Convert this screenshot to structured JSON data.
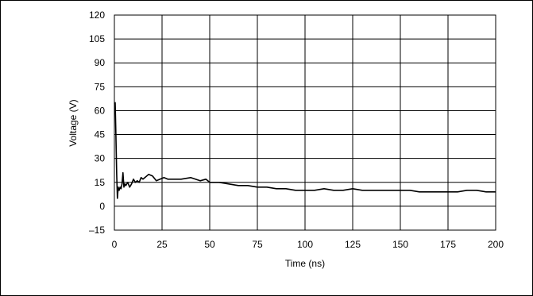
{
  "chart_data": {
    "type": "line",
    "title": "",
    "xlabel": "Time (ns)",
    "ylabel": "Voltage (V)",
    "xlim": [
      0,
      200
    ],
    "ylim": [
      -15,
      120
    ],
    "x_ticks": [
      0,
      25,
      50,
      75,
      100,
      125,
      150,
      175,
      200
    ],
    "y_ticks": [
      -15,
      0,
      15,
      30,
      45,
      60,
      75,
      90,
      105,
      120
    ],
    "x_tick_labels": [
      "0",
      "25",
      "50",
      "75",
      "100",
      "125",
      "150",
      "175",
      "200"
    ],
    "y_tick_labels": [
      "–15",
      "0",
      "15",
      "30",
      "45",
      "60",
      "75",
      "90",
      "105",
      "120"
    ],
    "grid": true,
    "line_color": "#000000",
    "series": [
      {
        "x": [
          0,
          0.4,
          0.8,
          1.2,
          1.6,
          2.0,
          2.5,
          3.0,
          3.5,
          4.0,
          4.5,
          5.0,
          5.5,
          6.0,
          7.0,
          8.0,
          9.0,
          10.0,
          11.0,
          12.0,
          13.0,
          14.0,
          15.0,
          16.0,
          18.0,
          20.0,
          22.0,
          24.0,
          26.0,
          28.0,
          30.0,
          35.0,
          40.0,
          45.0,
          48.0,
          50.0,
          55.0,
          60.0,
          65.0,
          70.0,
          75.0,
          80.0,
          85.0,
          90.0,
          95.0,
          100.0,
          105.0,
          110.0,
          115.0,
          120.0,
          125.0,
          130.0,
          135.0,
          140.0,
          145.0,
          150.0,
          155.0,
          160.0,
          165.0,
          170.0,
          175.0,
          180.0,
          185.0,
          190.0,
          195.0,
          200.0
        ],
        "y": [
          64,
          65,
          45,
          20,
          5,
          12,
          10,
          12,
          11,
          14,
          21,
          12,
          14,
          13,
          15,
          12,
          14,
          17,
          15,
          16,
          15,
          18,
          17,
          18,
          20,
          19,
          16,
          17,
          18,
          17,
          17,
          17,
          18,
          16,
          17,
          15,
          15,
          14,
          13,
          13,
          12,
          12,
          11,
          11,
          10,
          10,
          10,
          11,
          10,
          10,
          11,
          10,
          10,
          10,
          10,
          10,
          10,
          9,
          9,
          9,
          9,
          9,
          10,
          10,
          9,
          9
        ]
      }
    ]
  }
}
